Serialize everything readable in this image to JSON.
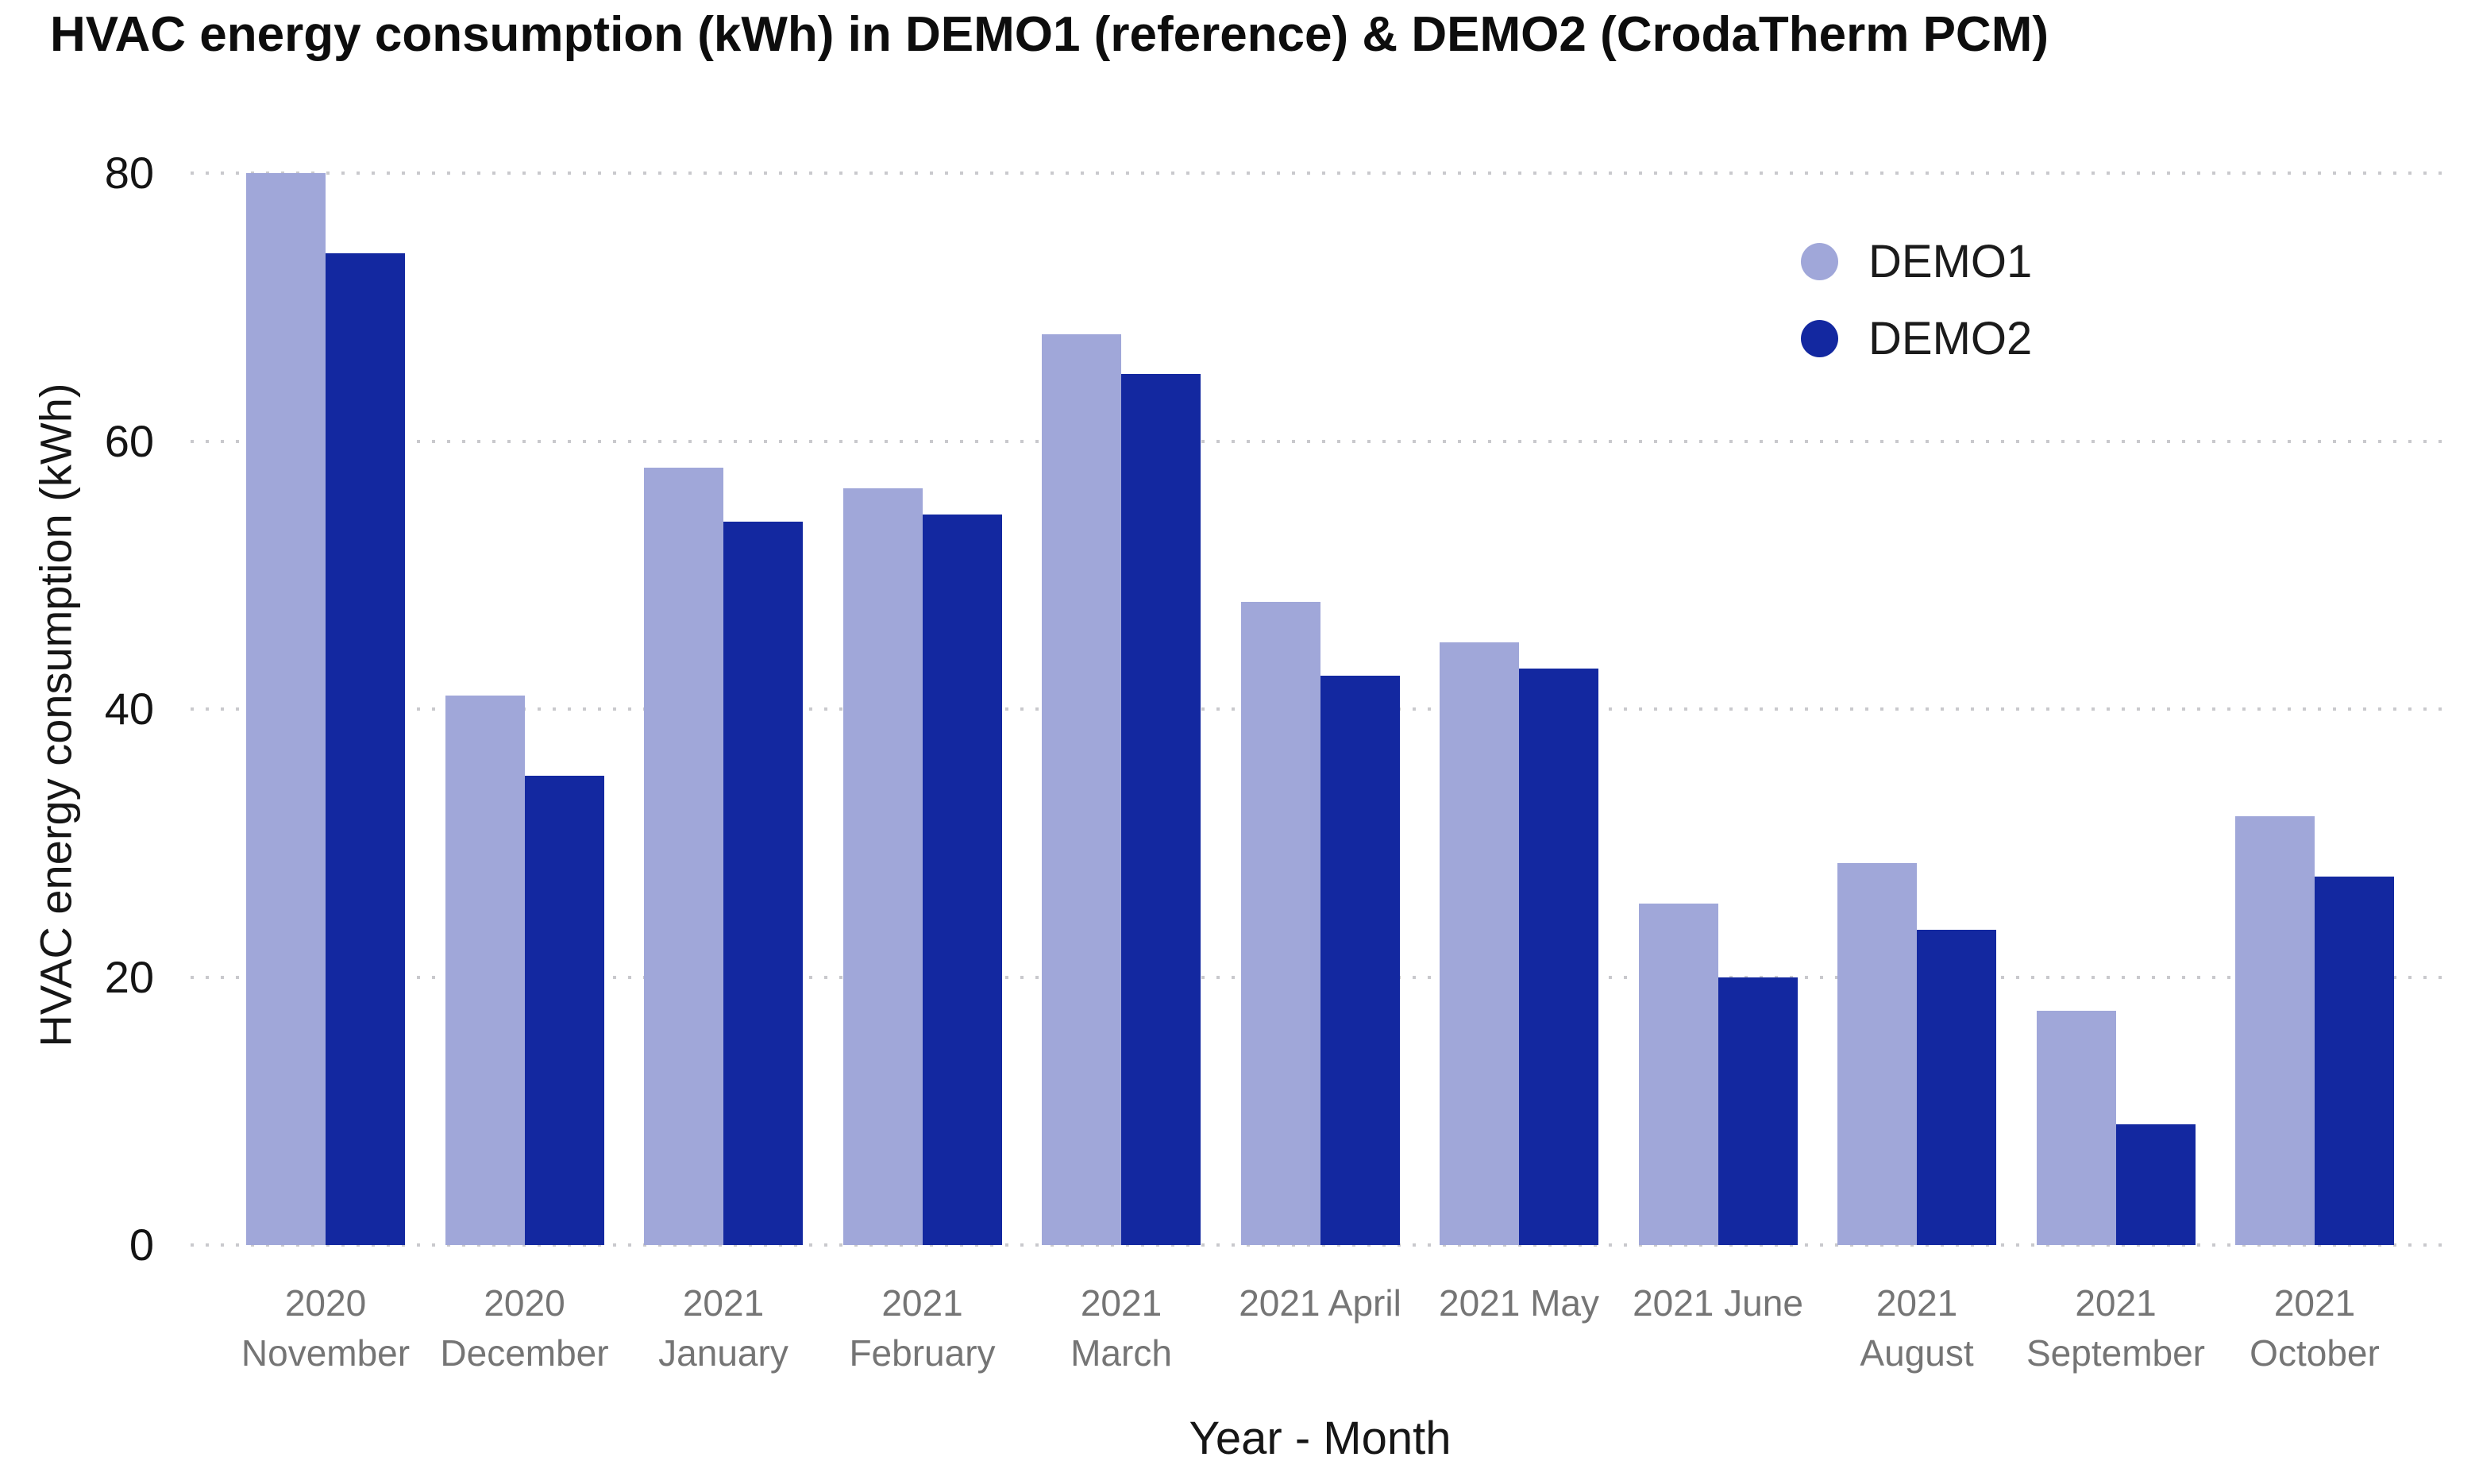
{
  "title": "HVAC energy consumption (kWh) in DEMO1 (reference) & DEMO2 (CrodaTherm PCM)",
  "chart_data": {
    "type": "bar",
    "title": "HVAC energy consumption (kWh) in DEMO1 (reference) & DEMO2 (CrodaTherm PCM)",
    "xlabel": "Year - Month",
    "ylabel": "HVAC energy consumption (kWh)",
    "ylim": [
      0,
      80
    ],
    "yticks": [
      0,
      20,
      40,
      60,
      80
    ],
    "grid": "horizontal-dotted",
    "legend_position": "top-right",
    "categories": [
      "2020 November",
      "2020 December",
      "2021 January",
      "2021 February",
      "2021 March",
      "2021 April",
      "2021 May",
      "2021 June",
      "2021 August",
      "2021 September",
      "2021 October"
    ],
    "category_label_lines": [
      [
        "2020",
        "November"
      ],
      [
        "2020",
        "December"
      ],
      [
        "2021",
        "January"
      ],
      [
        "2021",
        "February"
      ],
      [
        "2021",
        "March"
      ],
      [
        "2021 April"
      ],
      [
        "2021 May"
      ],
      [
        "2021 June"
      ],
      [
        "2021",
        "August"
      ],
      [
        "2021",
        "September"
      ],
      [
        "2021",
        "October"
      ]
    ],
    "series": [
      {
        "name": "DEMO1",
        "color": "#a0a7d9",
        "values": [
          80,
          41,
          58,
          56.5,
          68,
          48,
          45,
          25.5,
          28.5,
          17.5,
          32
        ]
      },
      {
        "name": "DEMO2",
        "color": "#1328a0",
        "values": [
          74,
          35,
          54,
          54.5,
          65,
          42.5,
          43,
          20,
          23.5,
          9,
          27.5
        ]
      }
    ]
  },
  "colors": {
    "background": "#ffffff",
    "gridline": "#c9c9cd",
    "x_tick_label": "#757575",
    "y_tick_label": "#141414",
    "title_text": "#0d0d0d"
  }
}
